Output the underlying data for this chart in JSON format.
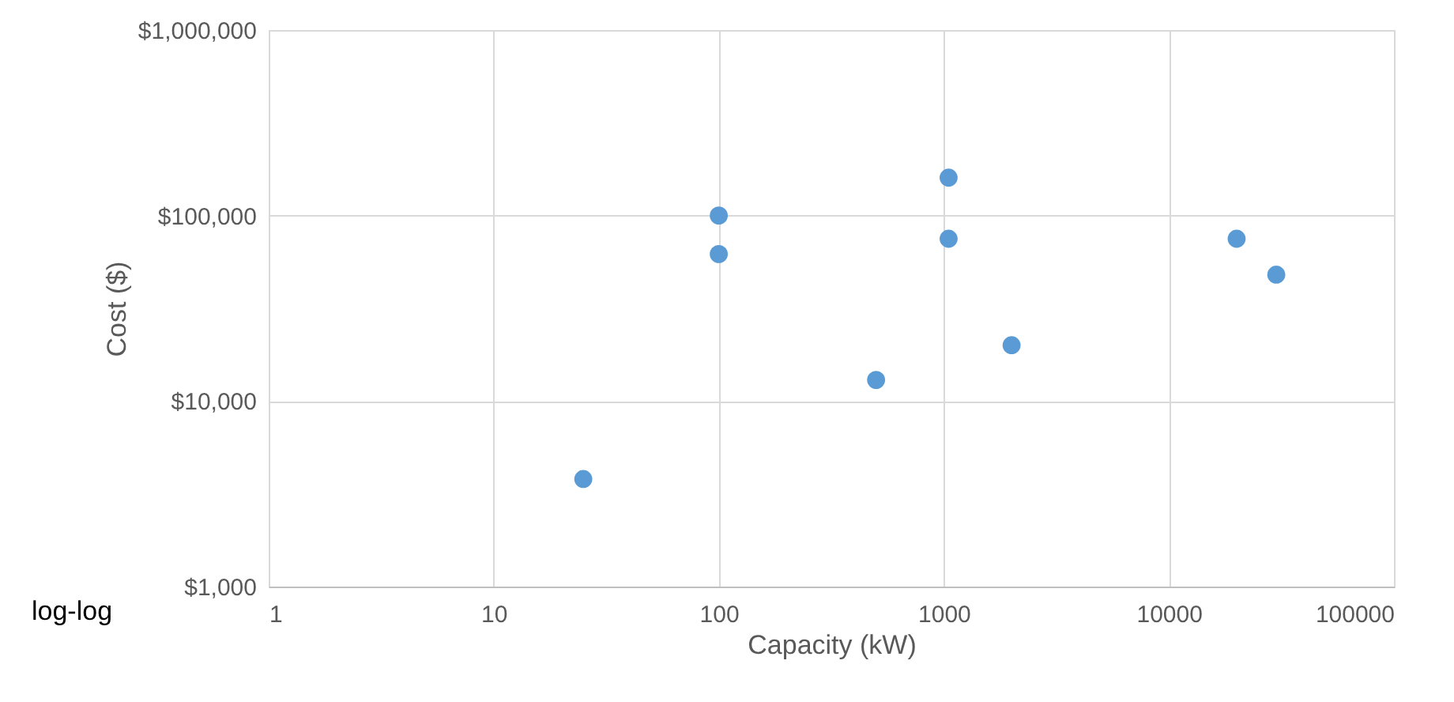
{
  "chart_data": {
    "type": "scatter",
    "xlabel": "Capacity (kW)",
    "ylabel": "Cost ($)",
    "annotations": [
      "log-log"
    ],
    "x": [
      25,
      100,
      100,
      1050,
      1050,
      500,
      2000,
      20000,
      30000
    ],
    "series": [
      {
        "color": "#5b9bd5",
        "values": [
          3800,
          100000,
          62000,
          160000,
          75000,
          13000,
          20000,
          75000,
          48000
        ]
      }
    ],
    "log": "xy",
    "xlim": [
      1,
      100000
    ],
    "ylim": [
      1000,
      1000000
    ],
    "xticks": [
      1,
      10,
      100,
      1000,
      10000,
      100000
    ],
    "yticks": [
      {
        "value": 1000,
        "label": "$1,000"
      },
      {
        "value": 10000,
        "label": "$10,000"
      },
      {
        "value": 100000,
        "label": "$100,000"
      },
      {
        "value": 1000000,
        "label": "$1,000,000"
      }
    ],
    "grid": true,
    "marker": "circle"
  }
}
